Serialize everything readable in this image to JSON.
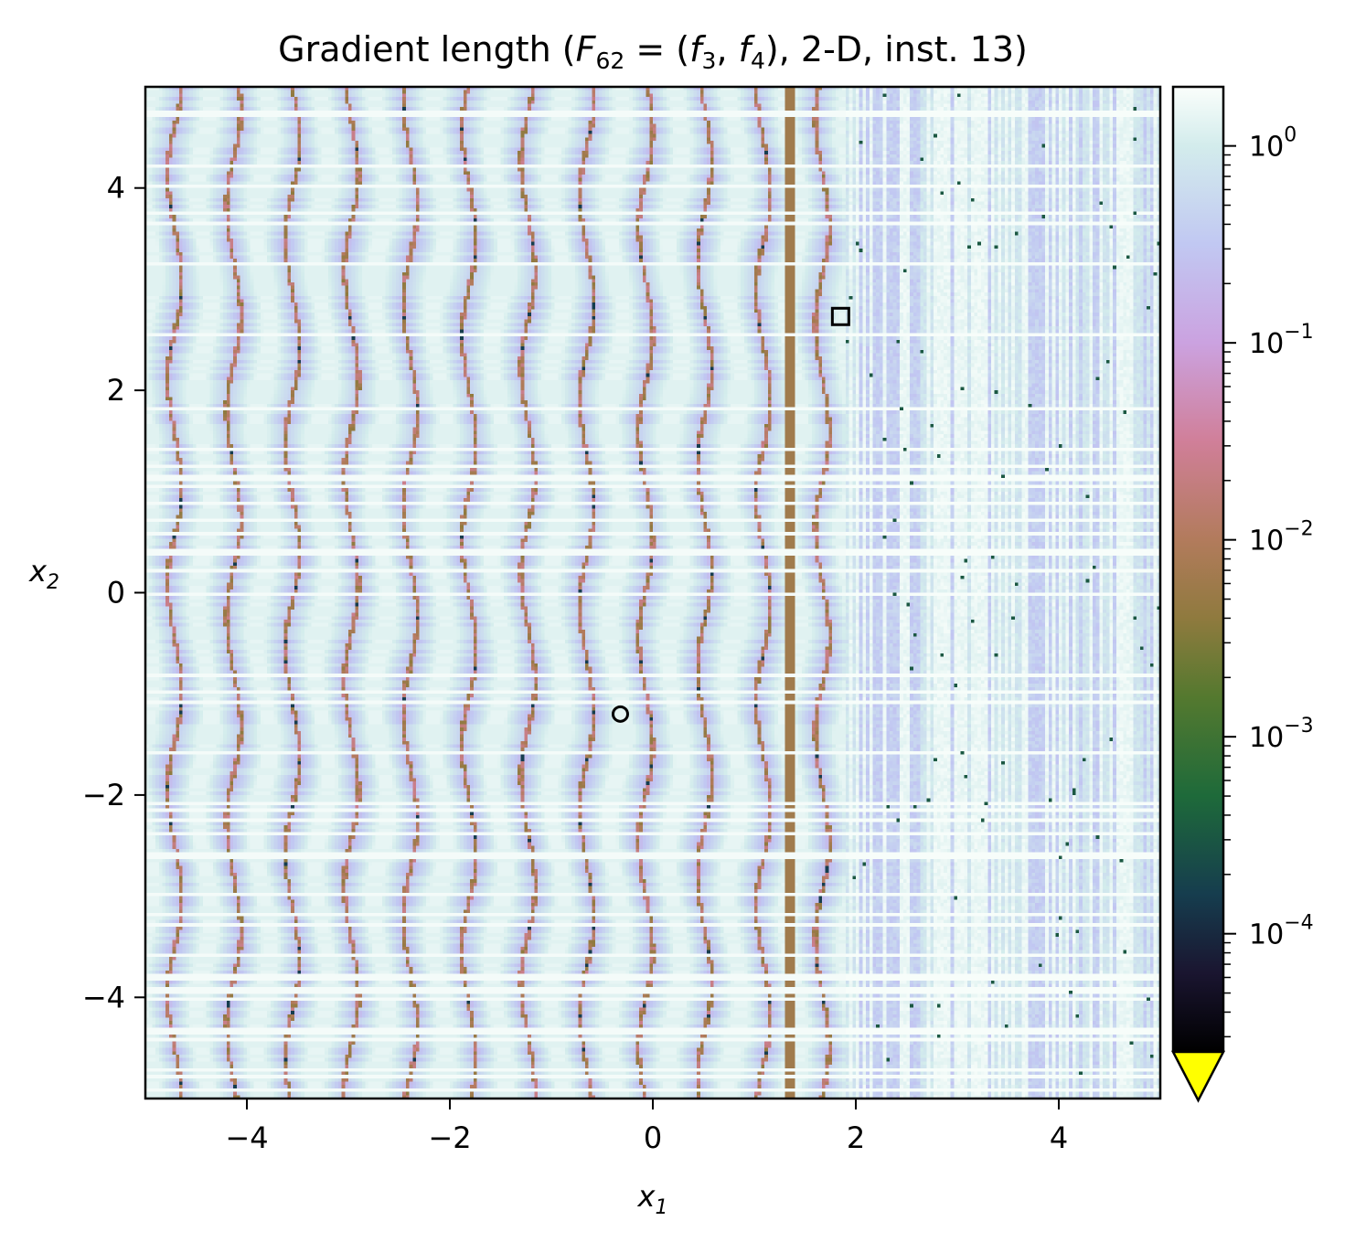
{
  "chart_data": {
    "type": "heatmap",
    "title": {
      "prefix": "Gradient length (",
      "F": "F",
      "F_sub": "62",
      "eq": " = (",
      "f3": "f",
      "f3_sub": "3",
      "comma": ", ",
      "f4": "f",
      "f4_sub": "4",
      "suffix": "), 2-D, inst. 13)"
    },
    "xlabel": {
      "var": "x",
      "sub": "1"
    },
    "ylabel": {
      "var": "x",
      "sub": "2"
    },
    "xlim": [
      -5,
      5
    ],
    "ylim": [
      -5,
      5
    ],
    "xticks": [
      {
        "value": -4,
        "label": "−4"
      },
      {
        "value": -2,
        "label": "−2"
      },
      {
        "value": 0,
        "label": "0"
      },
      {
        "value": 2,
        "label": "2"
      },
      {
        "value": 4,
        "label": "4"
      }
    ],
    "yticks": [
      {
        "value": -4,
        "label": "−4"
      },
      {
        "value": -2,
        "label": "−2"
      },
      {
        "value": 0,
        "label": "0"
      },
      {
        "value": 2,
        "label": "2"
      },
      {
        "value": 4,
        "label": "4"
      }
    ],
    "colorbar": {
      "scale": "log",
      "range_log10": [
        -4.6,
        0.3
      ],
      "ticks": [
        {
          "log10": 0,
          "base": "10",
          "exp": "0"
        },
        {
          "log10": -1,
          "base": "10",
          "exp": "−1"
        },
        {
          "log10": -2,
          "base": "10",
          "exp": "−2"
        },
        {
          "log10": -3,
          "base": "10",
          "exp": "−3"
        },
        {
          "log10": -4,
          "base": "10",
          "exp": "−4"
        }
      ],
      "extend": "min",
      "under_color": "#ffff00",
      "colormap_stops": [
        {
          "log10": -4.6,
          "color": "#000000"
        },
        {
          "log10": -4.2,
          "color": "#1a1530"
        },
        {
          "log10": -3.8,
          "color": "#163d4e"
        },
        {
          "log10": -3.3,
          "color": "#1e6a3a"
        },
        {
          "log10": -2.8,
          "color": "#54792f"
        },
        {
          "log10": -2.4,
          "color": "#8f7a3e"
        },
        {
          "log10": -2.0,
          "color": "#b27b5c"
        },
        {
          "log10": -1.5,
          "color": "#d07f99"
        },
        {
          "log10": -1.0,
          "color": "#cba2e0"
        },
        {
          "log10": -0.5,
          "color": "#c1c8f2"
        },
        {
          "log10": 0.0,
          "color": "#d3ecec"
        },
        {
          "log10": 0.3,
          "color": "#fafefb"
        }
      ]
    },
    "markers": [
      {
        "shape": "square",
        "x": 1.85,
        "y": 2.73
      },
      {
        "shape": "circle",
        "x": -0.32,
        "y": -1.2
      }
    ]
  }
}
